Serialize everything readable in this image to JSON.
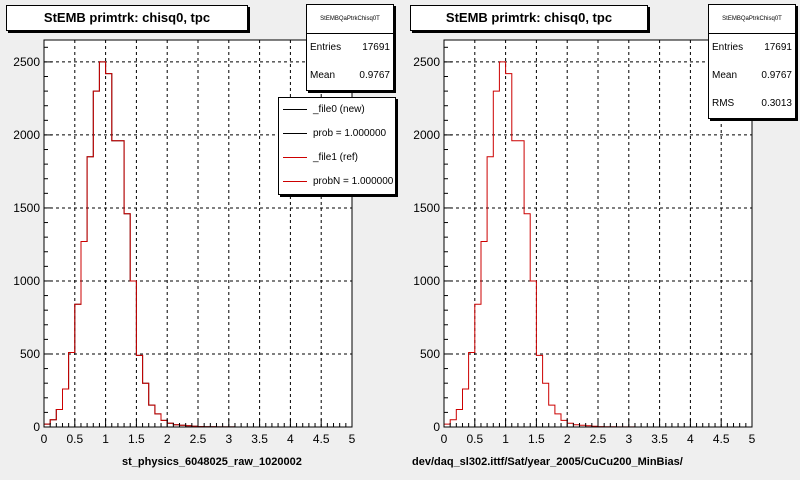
{
  "footer_text": "",
  "chart_data": [
    {
      "type": "histogram",
      "title": "StEMB primtrk: chisq0, tpc",
      "xlabel": "st_physics_6048025_raw_1020002",
      "ylabel": "",
      "xlim": [
        0,
        5
      ],
      "ylim": [
        0,
        2650
      ],
      "grid": true,
      "x_ticks": [
        "0",
        "0.5",
        "1",
        "1.5",
        "2",
        "2.5",
        "3",
        "3.5",
        "4",
        "4.5",
        "5"
      ],
      "y_ticks": [
        "0",
        "500",
        "1000",
        "1500",
        "2000",
        "2500"
      ],
      "bin_edges_start": 0,
      "bin_width": 0.1,
      "stats": {
        "name": "StEMBQaPtrkChisq0T",
        "rows": [
          {
            "label": "Entries",
            "value": "17691"
          },
          {
            "label": "Mean",
            "value": "0.9767"
          }
        ]
      },
      "legend": {
        "position": "top-right",
        "entries": [
          {
            "label": "_file0 (new)",
            "color": "#000000"
          },
          {
            "label": "prob = 1.000000",
            "color": "#000000"
          },
          {
            "label": "_file1 (ref)",
            "color": "#cc0000"
          },
          {
            "label": "probN = 1.000000",
            "color": "#cc0000"
          }
        ]
      },
      "series": [
        {
          "color": "#000000",
          "values": [
            20,
            50,
            120,
            260,
            510,
            840,
            1270,
            1850,
            2300,
            2500,
            2420,
            1960,
            1960,
            1460,
            1000,
            490,
            300,
            150,
            90,
            45,
            25,
            15,
            12,
            8,
            5,
            3,
            2,
            2,
            1,
            1,
            1,
            0,
            0,
            0,
            0,
            0,
            0,
            0,
            0,
            0,
            0,
            0,
            0,
            0,
            0,
            0,
            0,
            0,
            0,
            0
          ]
        },
        {
          "color": "#cc0000",
          "values": [
            20,
            50,
            120,
            260,
            510,
            840,
            1270,
            1850,
            2300,
            2500,
            2420,
            1960,
            1960,
            1460,
            1000,
            490,
            300,
            150,
            90,
            45,
            25,
            15,
            12,
            8,
            5,
            3,
            2,
            2,
            1,
            1,
            1,
            0,
            0,
            0,
            0,
            0,
            0,
            0,
            0,
            0,
            0,
            0,
            0,
            0,
            0,
            0,
            0,
            0,
            0,
            0
          ]
        }
      ]
    },
    {
      "type": "histogram",
      "title": "StEMB primtrk: chisq0, tpc",
      "xlabel": "dev/daq_sl302.ittf/Sat/year_2005/CuCu200_MinBias/",
      "ylabel": "",
      "xlim": [
        0,
        5
      ],
      "ylim": [
        0,
        2650
      ],
      "grid": true,
      "x_ticks": [
        "0",
        "0.5",
        "1",
        "1.5",
        "2",
        "2.5",
        "3",
        "3.5",
        "4",
        "4.5",
        "5"
      ],
      "y_ticks": [
        "0",
        "500",
        "1000",
        "1500",
        "2000",
        "2500"
      ],
      "bin_edges_start": 0,
      "bin_width": 0.1,
      "stats": {
        "name": "StEMBQaPtrkChisq0T",
        "rows": [
          {
            "label": "Entries",
            "value": "17691"
          },
          {
            "label": "Mean",
            "value": "0.9767"
          },
          {
            "label": "RMS",
            "value": "0.3013"
          }
        ]
      },
      "series": [
        {
          "color": "#cc0000",
          "values": [
            20,
            50,
            120,
            260,
            510,
            840,
            1270,
            1850,
            2300,
            2500,
            2420,
            1960,
            1960,
            1460,
            1000,
            490,
            300,
            150,
            90,
            45,
            25,
            15,
            12,
            8,
            5,
            3,
            2,
            2,
            1,
            1,
            1,
            0,
            0,
            0,
            0,
            0,
            0,
            0,
            0,
            0,
            0,
            0,
            0,
            0,
            0,
            0,
            0,
            0,
            0,
            0
          ]
        }
      ]
    }
  ]
}
